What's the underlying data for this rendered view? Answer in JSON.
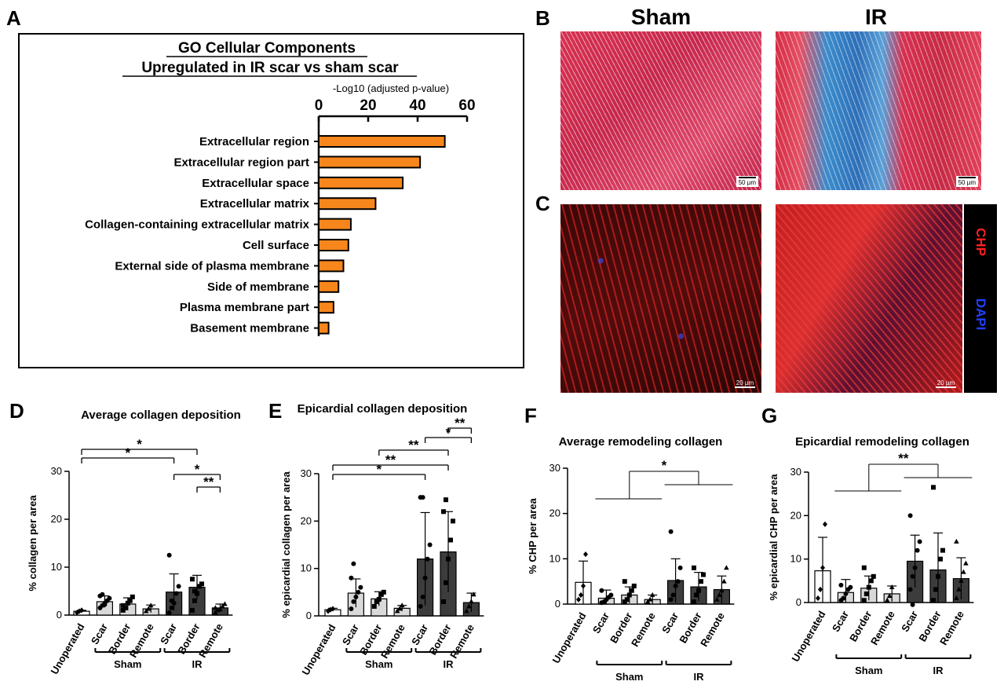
{
  "panels": {
    "A": "A",
    "B": "B",
    "C": "C",
    "D": "D",
    "E": "E",
    "F": "F",
    "G": "G"
  },
  "go_chart": {
    "title_line1": "GO Cellular Components",
    "title_line2": "Upregulated in IR scar vs sham scar",
    "axis_label": "-Log10 (adjusted p-value)",
    "ticks": [
      0,
      20,
      40,
      60
    ],
    "bar_color": "#f7861c"
  },
  "micrographs": {
    "sham_label": "Sham",
    "ir_label": "IR",
    "scale_b": "50 µm",
    "scale_c": "20 µm",
    "chp_label": "CHP",
    "dapi_label": "DAPI",
    "chp_color": "#ff2020",
    "dapi_color": "#2040ff"
  },
  "chart_data": [
    {
      "type": "bar",
      "orientation": "horizontal",
      "title": "GO Cellular Components Upregulated in IR scar vs sham scar",
      "xlabel": "-Log10 (adjusted p-value)",
      "xlim": [
        0,
        60
      ],
      "categories": [
        "Extracellular region",
        "Extracellular region part",
        "Extracellular space",
        "Extracellular matrix",
        "Collagen-containing extracellular matrix",
        "Cell surface",
        "External side of plasma membrane",
        "Side of membrane",
        "Plasma membrane part",
        "Basement membrane"
      ],
      "values": [
        51,
        41,
        34,
        23,
        13,
        12,
        10,
        8,
        6,
        4
      ]
    },
    {
      "type": "bar",
      "title": "Average collagen deposition",
      "ylabel": "% collagen per area",
      "ylim": [
        0,
        30
      ],
      "yticks": [
        0,
        10,
        20,
        30
      ],
      "categories": [
        "Unoperated",
        "Scar",
        "Border",
        "Remote",
        "Scar",
        "Border",
        "Remote"
      ],
      "groups": [
        {
          "label": "Sham",
          "from": 1,
          "to": 3
        },
        {
          "label": "IR",
          "from": 4,
          "to": 6
        }
      ],
      "values": [
        0.8,
        2.8,
        2.3,
        1.3,
        4.8,
        5.8,
        1.5
      ],
      "errors": [
        0.2,
        1.2,
        1.3,
        0.8,
        3.8,
        2.5,
        0.8
      ],
      "points": [
        [
          0.5,
          0.8,
          1.0
        ],
        [
          1.5,
          2,
          2.5,
          3,
          3.5,
          4,
          4.3,
          2.2
        ],
        [
          1,
          1.5,
          2.5,
          3,
          3.8,
          2
        ],
        [
          0.8,
          1.3,
          2
        ],
        [
          0.5,
          1.5,
          2.5,
          4.5,
          6,
          12.5,
          3
        ],
        [
          1,
          3,
          4.5,
          6,
          6.5,
          7.5,
          5
        ],
        [
          0.5,
          1,
          1.2,
          1.8,
          2.3,
          1.5
        ]
      ],
      "significance": [
        {
          "from": 0,
          "to": 5,
          "label": "*"
        },
        {
          "from": 0,
          "to": 4,
          "label": "*"
        },
        {
          "from": 4,
          "to": 6,
          "label": "*"
        },
        {
          "from": 5,
          "to": 6,
          "label": "**"
        }
      ]
    },
    {
      "type": "bar",
      "title": "Epicardial collagen deposition",
      "ylabel": "% epicardial collagen per area",
      "ylim": [
        0,
        30
      ],
      "yticks": [
        0,
        10,
        20,
        30
      ],
      "categories": [
        "Unoperated",
        "Scar",
        "Border",
        "Remote",
        "Scar",
        "Border",
        "Remote"
      ],
      "groups": [
        {
          "label": "Sham",
          "from": 1,
          "to": 3
        },
        {
          "label": "IR",
          "from": 4,
          "to": 6
        }
      ],
      "values": [
        1.3,
        4.8,
        3.6,
        1.6,
        12,
        13.5,
        2.8
      ],
      "errors": [
        0.3,
        3.0,
        1.5,
        0.6,
        9.8,
        8.5,
        2.0
      ],
      "points": [
        [
          1,
          1.3,
          1.5
        ],
        [
          1.5,
          3,
          4,
          5,
          6,
          8,
          11
        ],
        [
          2,
          3,
          3.5,
          4.5,
          5
        ],
        [
          1,
          1.5,
          2.2
        ],
        [
          2,
          4,
          8,
          12,
          15,
          25,
          25
        ],
        [
          3,
          7,
          12,
          16,
          20,
          22,
          24.5
        ],
        [
          1,
          2,
          3,
          4.5
        ]
      ],
      "significance": [
        {
          "from": 0,
          "to": 4,
          "label": "*"
        },
        {
          "from": 0,
          "to": 5,
          "label": "**"
        },
        {
          "from": 2,
          "to": 5,
          "label": "**"
        },
        {
          "from": 4,
          "to": 6,
          "label": "*"
        },
        {
          "from": 5,
          "to": 6,
          "label": "**"
        }
      ]
    },
    {
      "type": "bar",
      "title": "Average remodeling collagen",
      "ylabel": "% CHP per area",
      "ylim": [
        0,
        30
      ],
      "yticks": [
        0,
        10,
        20,
        30
      ],
      "categories": [
        "Unoperated",
        "Scar",
        "Border",
        "Remote",
        "Scar",
        "Border",
        "Remote"
      ],
      "groups": [
        {
          "label": "Sham",
          "from": 1,
          "to": 3
        },
        {
          "label": "IR",
          "from": 4,
          "to": 6
        }
      ],
      "values": [
        4.8,
        1.3,
        2,
        1,
        5.2,
        3.8,
        3.2
      ],
      "errors": [
        4.7,
        1.8,
        1.8,
        1.0,
        4.8,
        3.2,
        3.0
      ],
      "points": [
        [
          1,
          2,
          4,
          11
        ],
        [
          0.3,
          0.5,
          1,
          1.5,
          2,
          3
        ],
        [
          0.5,
          1,
          2,
          3,
          4,
          5
        ],
        [
          0.5,
          1,
          2
        ],
        [
          1,
          2,
          4,
          5,
          8,
          16
        ],
        [
          0.5,
          2,
          3,
          5,
          6.5,
          8
        ],
        [
          1,
          2,
          3,
          5,
          8
        ]
      ],
      "significance": [
        {
          "label": "*",
          "group_compare": [
            "Sham",
            "IR"
          ]
        }
      ]
    },
    {
      "type": "bar",
      "title": "Epicardial remodeling collagen",
      "ylabel": "% epicardial CHP per area",
      "ylim": [
        0,
        30
      ],
      "yticks": [
        0,
        10,
        20,
        30
      ],
      "categories": [
        "Unoperated",
        "Scar",
        "Border",
        "Remote",
        "Scar",
        "Border",
        "Remote"
      ],
      "groups": [
        {
          "label": "Sham",
          "from": 1,
          "to": 3
        },
        {
          "label": "IR",
          "from": 4,
          "to": 6
        }
      ],
      "values": [
        7.3,
        2.3,
        3.3,
        2,
        9.5,
        7.5,
        5.5
      ],
      "errors": [
        7.7,
        3.0,
        2.8,
        1.8,
        6.0,
        8.5,
        4.8
      ],
      "points": [
        [
          1,
          3,
          8,
          18
        ],
        [
          0.5,
          1,
          2,
          3,
          3.5,
          4
        ],
        [
          0.5,
          2,
          3.5,
          5,
          6,
          8
        ],
        [
          0.5,
          1.5,
          3.5
        ],
        [
          3,
          6,
          8,
          12,
          14,
          20,
          -0.5
        ],
        [
          0.5,
          3,
          6,
          10,
          12,
          26.5
        ],
        [
          1,
          3,
          5,
          7,
          9,
          14
        ]
      ],
      "significance": [
        {
          "label": "**",
          "group_compare": [
            "Sham",
            "IR"
          ]
        }
      ]
    }
  ]
}
